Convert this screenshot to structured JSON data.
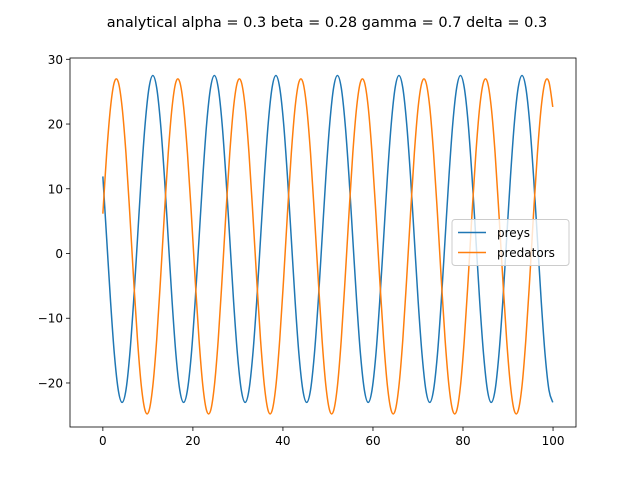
{
  "chart_data": {
    "type": "line",
    "title": "analytical alpha = 0.3 beta = 0.28 gamma = 0.7 delta = 0.3",
    "x": [
      0,
      0.85,
      1.71,
      2.56,
      3.42,
      4.27,
      5.13,
      5.98,
      6.83,
      7.69,
      8.54,
      9.4,
      10.25,
      11.1,
      11.96,
      12.81,
      13.67,
      14.52,
      15.38,
      16.23,
      17.08,
      17.94,
      18.79,
      19.65,
      20.5,
      21.36,
      22.21,
      23.06,
      23.92,
      24.77,
      25.63,
      26.48,
      27.33,
      28.19,
      29.04,
      29.9,
      30.75,
      31.61,
      32.46,
      33.31,
      34.17,
      35.02,
      35.88,
      36.73,
      37.58,
      38.44,
      39.29,
      40.15,
      41.0,
      41.86,
      42.71,
      43.56,
      44.42,
      45.27,
      46.13,
      46.98,
      47.84,
      48.69,
      49.54,
      50.4,
      51.25,
      52.11,
      52.96,
      53.81,
      54.67,
      55.52,
      56.38,
      57.23,
      58.09,
      58.94,
      59.79,
      60.65,
      61.5,
      62.36,
      63.21,
      64.07,
      64.92,
      65.77,
      66.63,
      67.48,
      68.34,
      69.19,
      70.04,
      70.9,
      71.75,
      72.61,
      73.46,
      74.32,
      75.17,
      76.02,
      76.88,
      77.73,
      78.59,
      79.44,
      80.29,
      81.15,
      82.0,
      82.86,
      83.71,
      84.57,
      85.42,
      86.27,
      87.13,
      87.98,
      88.84,
      89.69,
      90.55,
      91.4,
      92.25,
      93.11,
      93.96,
      94.82,
      95.67,
      96.53,
      97.38,
      98.23,
      99.09,
      99.94
    ],
    "series": [
      {
        "name": "preys",
        "color": "#1f77b4",
        "values": [
          11.91,
          2.25,
          -7.41,
          -15.6,
          -21.08,
          -23,
          -21.08,
          -15.6,
          -7.41,
          2.25,
          11.91,
          20.1,
          25.58,
          27.5,
          25.58,
          20.1,
          11.91,
          2.25,
          -7.41,
          -15.6,
          -21.08,
          -23,
          -21.08,
          -15.6,
          -7.41,
          2.25,
          11.91,
          20.1,
          25.58,
          27.5,
          25.58,
          20.1,
          11.91,
          2.25,
          -7.41,
          -15.6,
          -21.08,
          -23,
          -21.08,
          -15.6,
          -7.41,
          2.25,
          11.91,
          20.1,
          25.58,
          27.5,
          25.58,
          20.1,
          11.91,
          2.25,
          -7.41,
          -15.6,
          -21.08,
          -23,
          -21.08,
          -15.6,
          -7.41,
          2.25,
          11.91,
          20.1,
          25.58,
          27.5,
          25.58,
          20.1,
          11.91,
          2.25,
          -7.41,
          -15.6,
          -21.08,
          -23,
          -21.08,
          -15.6,
          -7.41,
          2.25,
          11.91,
          20.1,
          25.58,
          27.5,
          25.58,
          20.1,
          11.91,
          2.25,
          -7.41,
          -15.6,
          -21.08,
          -23,
          -21.08,
          -15.6,
          -7.41,
          2.25,
          11.91,
          20.1,
          25.58,
          27.5,
          25.58,
          20.1,
          11.91,
          2.25,
          -7.41,
          -15.6,
          -21.08,
          -23,
          -21.08,
          -15.6,
          -7.41,
          2.25,
          11.91,
          20.1,
          25.58,
          27.5,
          25.58,
          20.1,
          11.91,
          2.25,
          -7.41,
          -15.6,
          -21.08,
          -23
        ]
      },
      {
        "name": "predators",
        "color": "#ff7f0e",
        "values": [
          6.15,
          15.49,
          22.64,
          26.5,
          26.5,
          22.64,
          15.49,
          6.15,
          -3.95,
          -13.29,
          -20.44,
          -24.3,
          -24.3,
          -20.44,
          -13.29,
          -3.95,
          6.15,
          15.49,
          22.64,
          26.5,
          26.5,
          22.64,
          15.49,
          6.15,
          -3.95,
          -13.29,
          -20.44,
          -24.3,
          -24.3,
          -20.44,
          -13.29,
          -3.95,
          6.15,
          15.49,
          22.64,
          26.5,
          26.5,
          22.64,
          15.49,
          6.15,
          -3.95,
          -13.29,
          -20.44,
          -24.3,
          -24.3,
          -20.44,
          -13.29,
          -3.95,
          6.15,
          15.49,
          22.64,
          26.5,
          26.5,
          22.64,
          15.49,
          6.15,
          -3.95,
          -13.29,
          -20.44,
          -24.3,
          -24.3,
          -20.44,
          -13.29,
          -3.95,
          6.15,
          15.49,
          22.64,
          26.5,
          26.5,
          22.64,
          15.49,
          6.15,
          -3.95,
          -13.29,
          -20.44,
          -24.3,
          -24.3,
          -20.44,
          -13.29,
          -3.95,
          6.15,
          15.49,
          22.64,
          26.5,
          26.5,
          22.64,
          15.49,
          6.15,
          -3.95,
          -13.29,
          -20.44,
          -24.3,
          -24.3,
          -20.44,
          -13.29,
          -3.95,
          6.15,
          15.49,
          22.64,
          26.5,
          26.5,
          22.64,
          15.49,
          6.15,
          -3.95,
          -13.29,
          -20.44,
          -24.3,
          -24.3,
          -20.44,
          -13.29,
          -3.95,
          6.15,
          15.49,
          22.64,
          26.5,
          26.5,
          22.64
        ]
      }
    ],
    "xlim": [
      -7.3,
      105.1
    ],
    "xticks": [
      0,
      20,
      40,
      60,
      80,
      100
    ],
    "ylim": [
      -26.8,
      30.2
    ],
    "yticks": [
      {
        "value": -20,
        "label": "−20"
      },
      {
        "value": -10,
        "label": "−10"
      },
      0,
      10,
      20,
      30
    ],
    "legend": "center right"
  }
}
